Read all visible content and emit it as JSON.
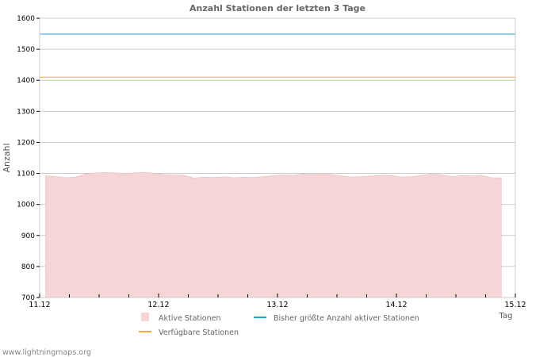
{
  "chart_data": {
    "type": "area",
    "title": "Anzahl Stationen der letzten 3 Tage",
    "xlabel": "Tag",
    "ylabel": "Anzahl",
    "ylim": [
      700,
      1600
    ],
    "xlim_days": [
      0,
      4
    ],
    "yticks": [
      700,
      800,
      900,
      1000,
      1100,
      1200,
      1300,
      1400,
      1500,
      1600
    ],
    "xtick_labels": [
      "11.12",
      "12.12",
      "13.12",
      "14.12",
      "15.12"
    ],
    "grid": true,
    "legend_placement": "bottom",
    "series": [
      {
        "name": "Aktive Stationen",
        "type": "area",
        "color": "#f5d5d5",
        "x_days_start": 0.05,
        "x_days_step": 0.0833,
        "values": [
          1093,
          1090,
          1086,
          1088,
          1098,
          1102,
          1103,
          1102,
          1100,
          1102,
          1104,
          1100,
          1096,
          1095,
          1094,
          1085,
          1088,
          1087,
          1089,
          1086,
          1088,
          1087,
          1090,
          1093,
          1095,
          1094,
          1098,
          1097,
          1099,
          1096,
          1092,
          1088,
          1090,
          1092,
          1094,
          1093,
          1088,
          1090,
          1094,
          1098,
          1096,
          1090,
          1093,
          1092,
          1094,
          1086,
          1086
        ]
      },
      {
        "name": "Bisher größte Anzahl aktiver Stationen",
        "type": "line",
        "color": "#29a3c9",
        "value": 1549
      },
      {
        "name": "Verfügbare Stationen",
        "type": "line",
        "color": "#f0b030",
        "value": 1410
      }
    ]
  },
  "footer": "www.lightningmaps.org"
}
